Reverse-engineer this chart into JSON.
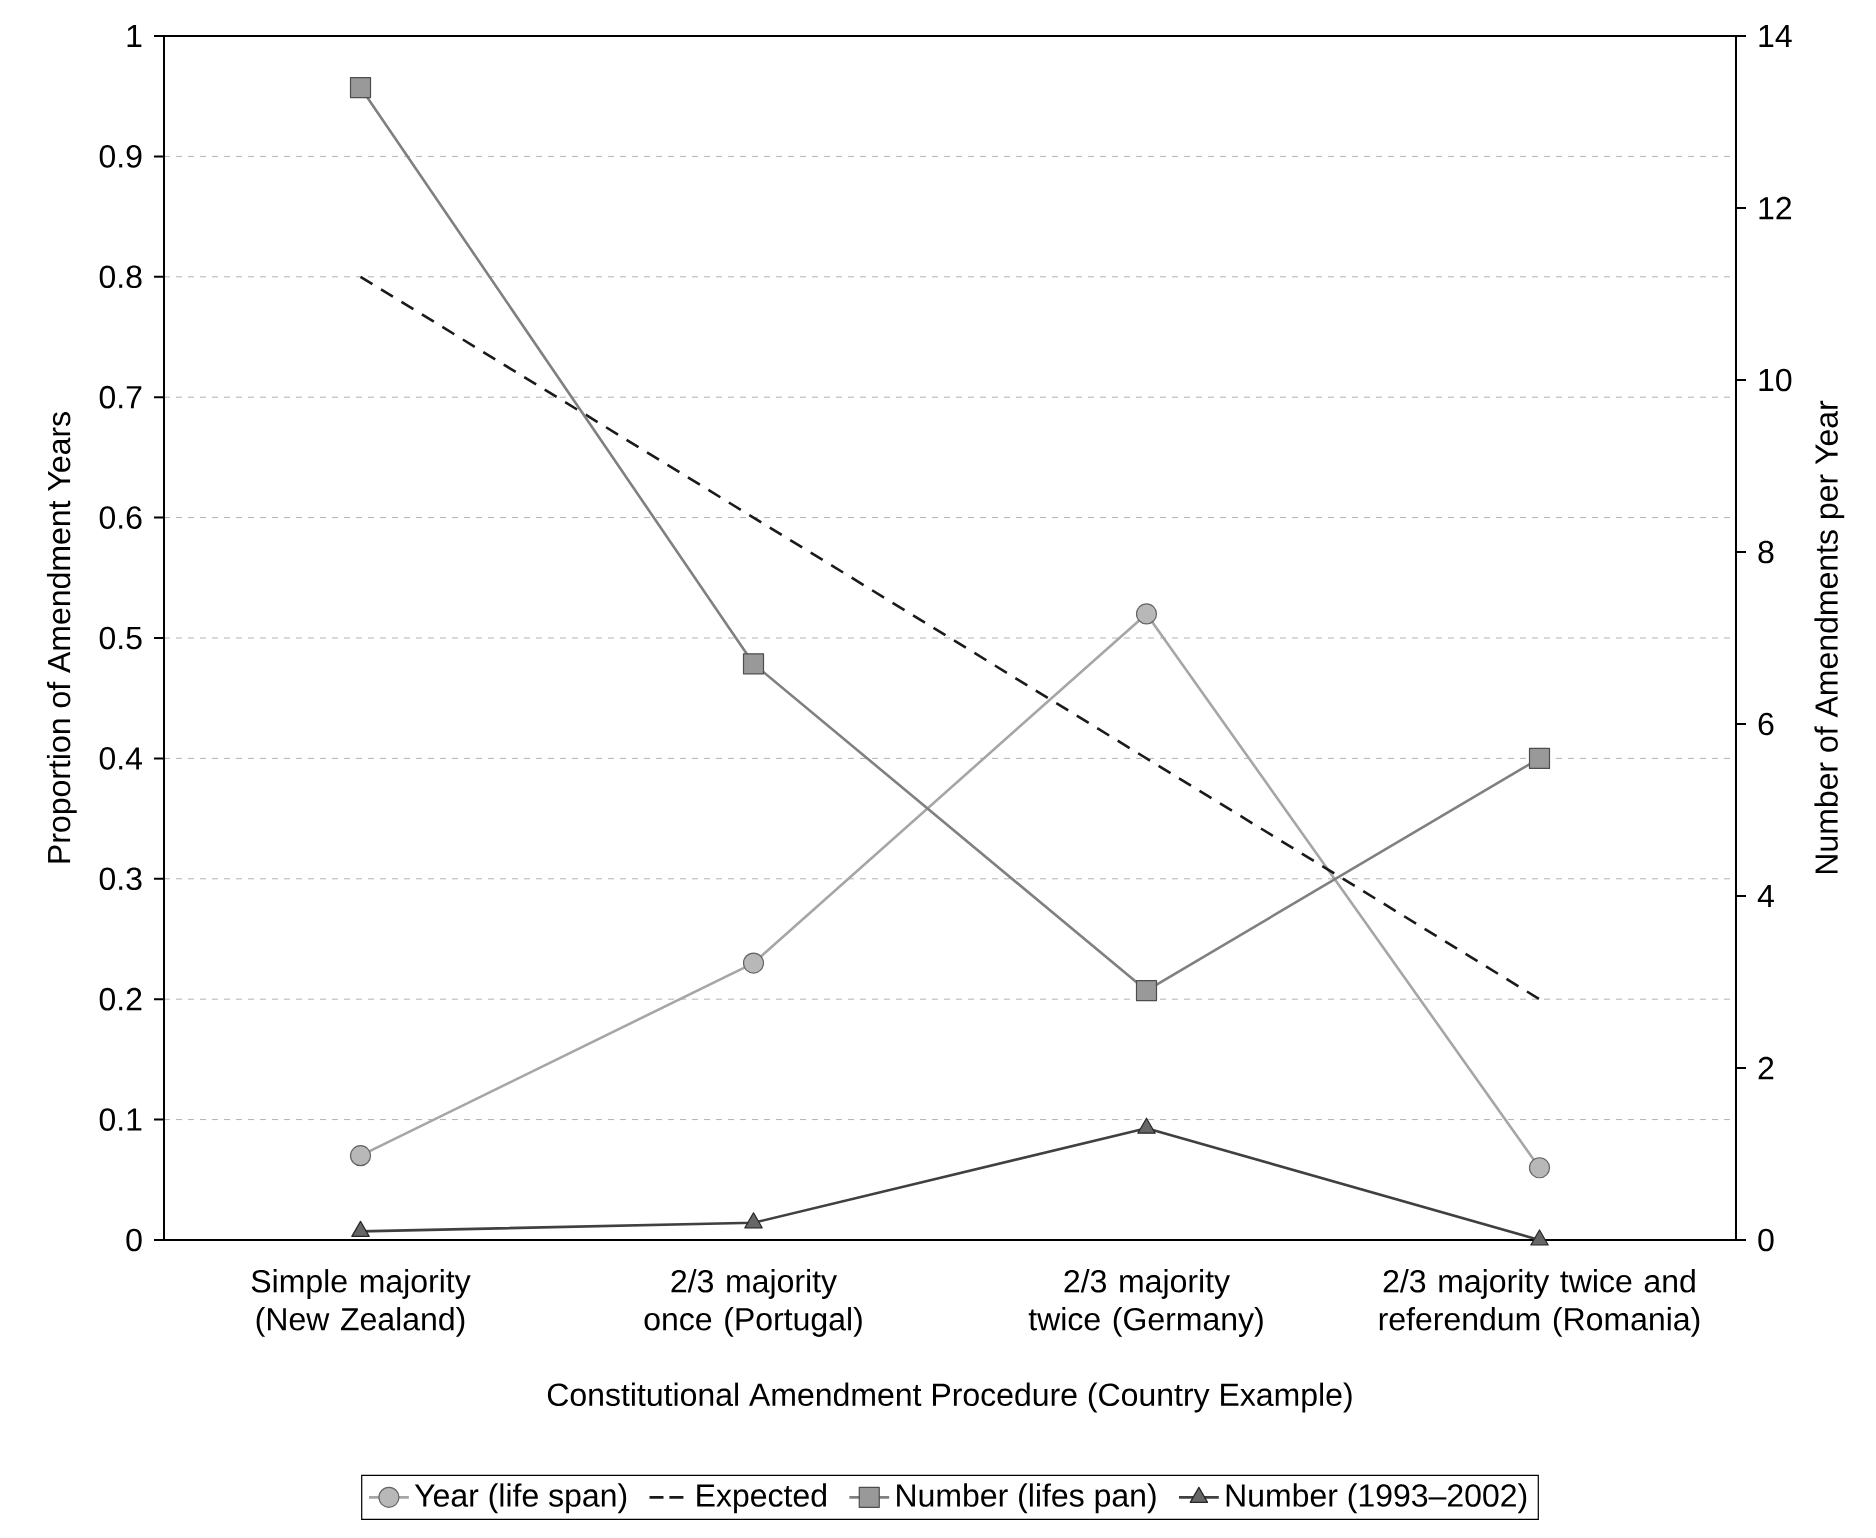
{
  "chart_data": {
    "type": "line",
    "xlabel": "Constitutional Amendment Procedure (Country Example)",
    "ylabel": "Proportion of Amendment Years",
    "y2label": "Number of Amendments per Year",
    "categories": [
      "Simple majority (New Zealand)",
      "2/3 majority once (Portugal)",
      "2/3 majority twice (Germany)",
      "2/3 majority twice and referendum (Romania)"
    ],
    "ylim": [
      0,
      1
    ],
    "yticks": [
      0,
      0.1,
      0.2,
      0.3,
      0.4,
      0.5,
      0.6,
      0.7,
      0.8,
      0.9,
      1
    ],
    "y2lim": [
      0,
      14
    ],
    "y2ticks": [
      0,
      2,
      4,
      6,
      8,
      10,
      12,
      14
    ],
    "grid": "y",
    "legend": "bottom",
    "series": [
      {
        "name": "Year (life span)",
        "color": "#a6a6a6",
        "values": [
          0.07,
          0.23,
          0.52,
          0.06
        ],
        "marker": "circle",
        "line_style": "solid"
      },
      {
        "name": "Expected",
        "color": "#1a1a1a",
        "values": [
          0.8,
          0.6,
          0.4,
          0.2
        ],
        "marker": "none",
        "line_style": "dashed"
      },
      {
        "name": "Number (lifes pan)",
        "color": "#808080",
        "values": [
          13.4,
          6.7,
          2.9,
          5.6
        ],
        "marker": "square",
        "axis": "y2",
        "line_style": "solid"
      },
      {
        "name": "Number (1993–2002)",
        "color": "#404040",
        "values": [
          0.1,
          0.2,
          1.3,
          0
        ],
        "marker": "triangle",
        "axis": "y2",
        "line_style": "solid"
      }
    ]
  }
}
